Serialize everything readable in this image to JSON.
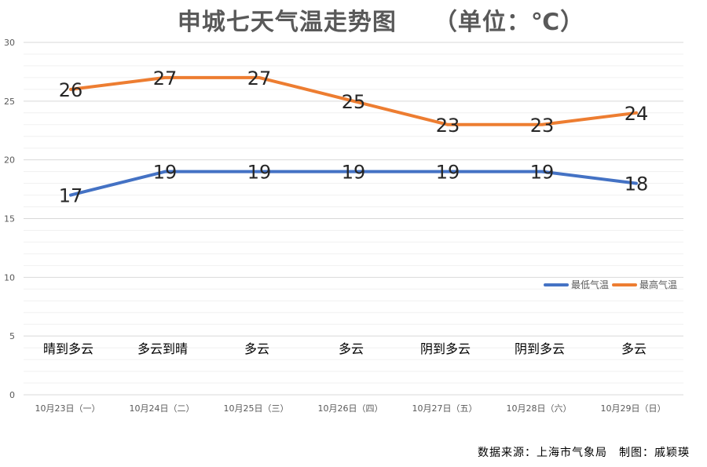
{
  "chart_data": {
    "type": "line",
    "title": "申城七天气温走势图　　（单位：℃）",
    "categories": [
      "10月23日（一）",
      "10月24日（二）",
      "10月25日（三）",
      "10月26日（四）",
      "10月27日（五）",
      "10月28日（六）",
      "10月29日（日）"
    ],
    "weather": [
      "晴到多云",
      "多云到晴",
      "多云",
      "多云",
      "阴到多云",
      "阴到多云",
      "多云"
    ],
    "series": [
      {
        "name": "最低气温",
        "color": "#4472C4",
        "values": [
          17,
          19,
          19,
          19,
          19,
          19,
          18
        ]
      },
      {
        "name": "最高气温",
        "color": "#ED7D31",
        "values": [
          26,
          27,
          27,
          25,
          23,
          23,
          24
        ]
      }
    ],
    "ylim": [
      0,
      30
    ],
    "yticks": [
      0,
      5,
      10,
      15,
      20,
      25,
      30
    ],
    "grid": true,
    "legend": "right"
  },
  "footer": {
    "source": "数据来源：上海市气象局　制图：戚颖瑛"
  }
}
